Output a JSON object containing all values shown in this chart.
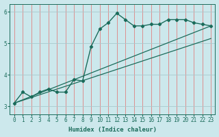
{
  "xlabel": "Humidex (Indice chaleur)",
  "ylabel": "",
  "background_color": "#cce8ec",
  "grid_color_v": "#e08080",
  "grid_color_h": "#a8c8cc",
  "line_color": "#1a6b5a",
  "xlim": [
    -0.5,
    23.5
  ],
  "ylim": [
    2.75,
    6.25
  ],
  "yticks": [
    3,
    4,
    5,
    6
  ],
  "xticks": [
    0,
    1,
    2,
    3,
    4,
    5,
    6,
    7,
    8,
    9,
    10,
    11,
    12,
    13,
    14,
    15,
    16,
    17,
    18,
    19,
    20,
    21,
    22,
    23
  ],
  "curve1_x": [
    0,
    1,
    2,
    3,
    4,
    5,
    6,
    7,
    8,
    9,
    10,
    11,
    12,
    13,
    14,
    15,
    16,
    17,
    18,
    19,
    20,
    21,
    22,
    23
  ],
  "curve1_y": [
    3.1,
    3.45,
    3.3,
    3.45,
    3.55,
    3.45,
    3.45,
    3.85,
    3.8,
    4.9,
    5.45,
    5.65,
    5.95,
    5.75,
    5.55,
    5.55,
    5.6,
    5.6,
    5.75,
    5.75,
    5.75,
    5.65,
    5.6,
    5.55
  ],
  "line1_x": [
    0,
    23
  ],
  "line1_y": [
    3.1,
    5.55
  ],
  "line2_x": [
    0,
    23
  ],
  "line2_y": [
    3.1,
    5.15
  ]
}
